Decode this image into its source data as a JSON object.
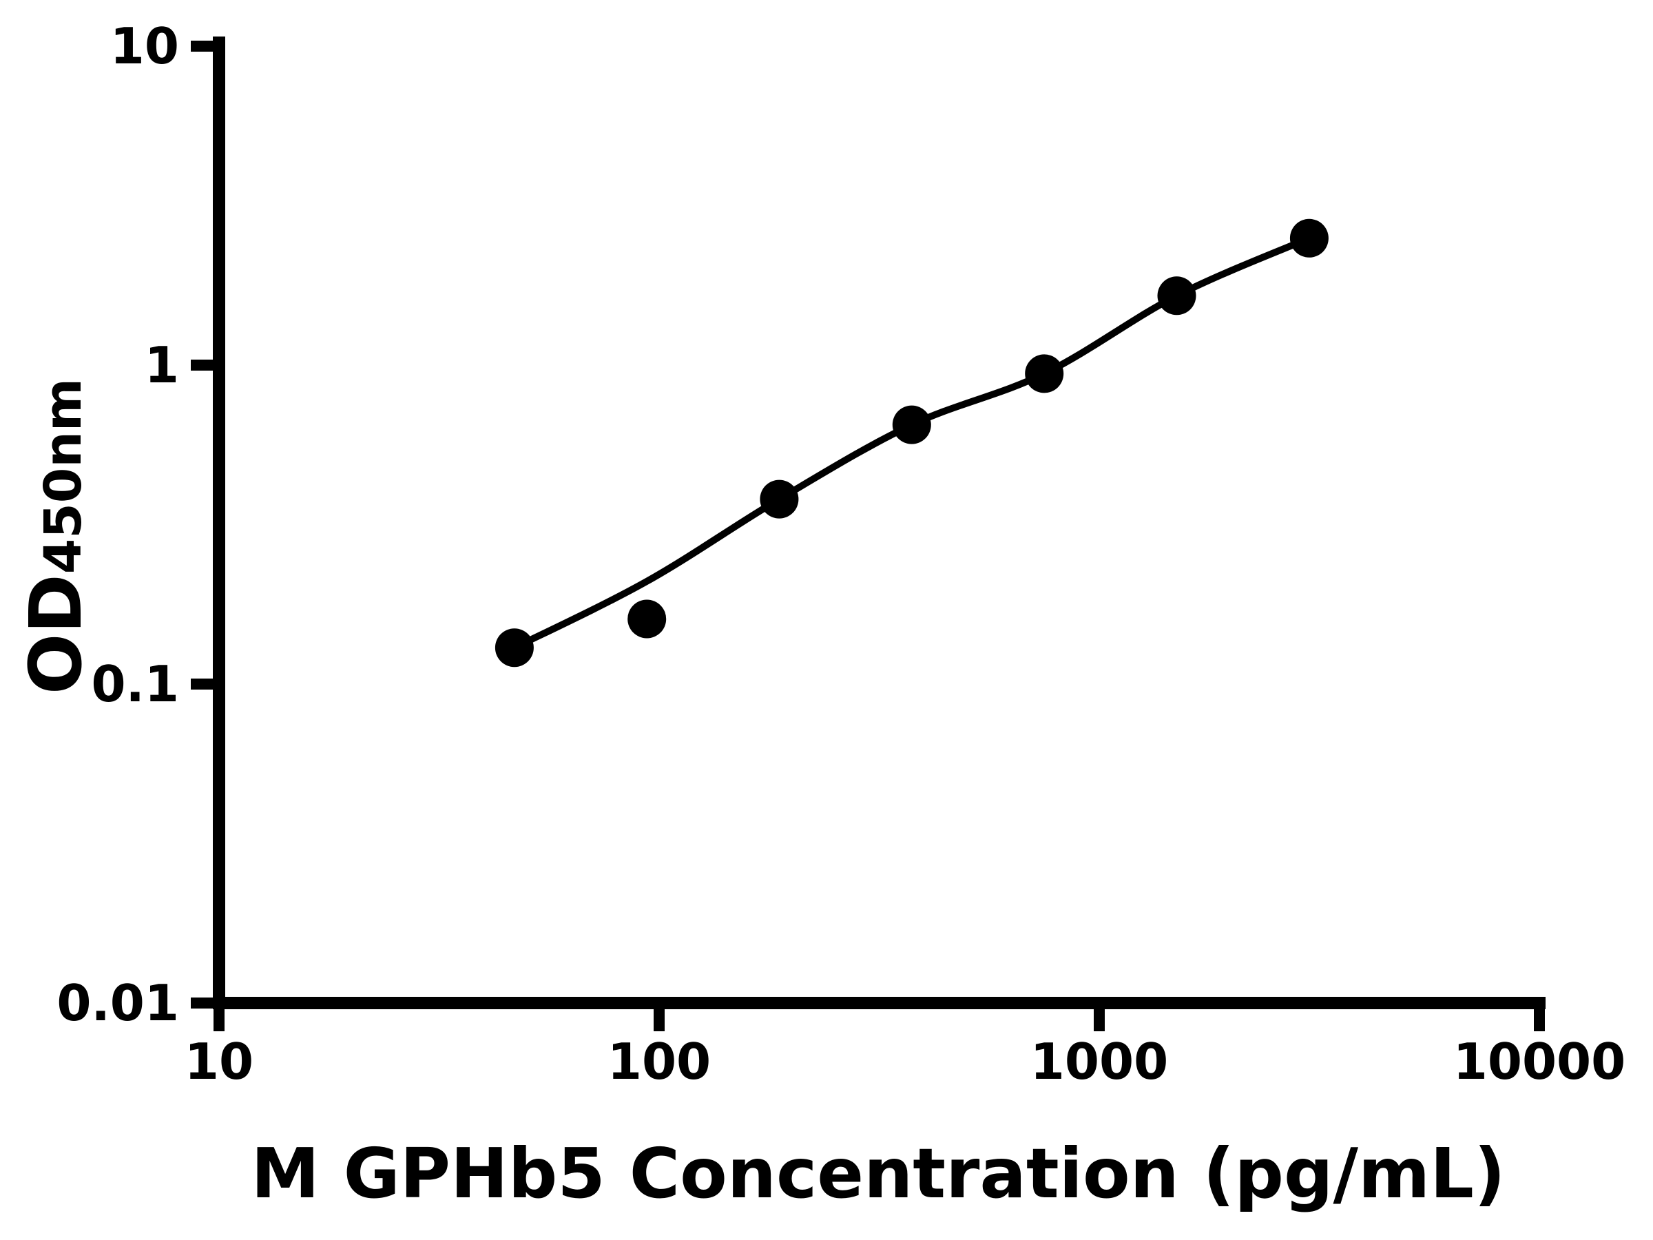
{
  "chart_data": {
    "type": "scatter",
    "title": "",
    "xlabel": "M GPHb5 Concentration (pg/mL)",
    "ylabel": "OD450nm",
    "ylabel_main": "OD",
    "ylabel_sub": "450nm",
    "x_scale": "log",
    "y_scale": "log",
    "xlim": [
      10,
      10000
    ],
    "ylim": [
      0.01,
      10
    ],
    "grid": false,
    "legend": "none",
    "x_ticks": [
      {
        "value": 10,
        "label": "10"
      },
      {
        "value": 100,
        "label": "100"
      },
      {
        "value": 1000,
        "label": "1000"
      },
      {
        "value": 10000,
        "label": "10000"
      }
    ],
    "y_ticks": [
      {
        "value": 10,
        "label": "10"
      },
      {
        "value": 1,
        "label": "1"
      },
      {
        "value": 0.1,
        "label": "0.1"
      },
      {
        "value": 0.01,
        "label": "0.01"
      }
    ],
    "series": [
      {
        "name": "standard-curve-points",
        "marker": "circle",
        "color": "#000000",
        "points": [
          {
            "x": 46.9,
            "y": 0.13
          },
          {
            "x": 93.8,
            "y": 0.16
          },
          {
            "x": 187.5,
            "y": 0.38
          },
          {
            "x": 375,
            "y": 0.65
          },
          {
            "x": 750,
            "y": 0.94
          },
          {
            "x": 1500,
            "y": 1.65
          },
          {
            "x": 3000,
            "y": 2.5
          }
        ]
      }
    ],
    "fit_line": {
      "name": "4pl-fit-line",
      "color": "#000000",
      "samples": [
        {
          "x": 46.9,
          "y": 0.13
        },
        {
          "x": 93.8,
          "y": 0.21
        },
        {
          "x": 187.5,
          "y": 0.38
        },
        {
          "x": 375,
          "y": 0.65
        },
        {
          "x": 750,
          "y": 0.94
        },
        {
          "x": 1500,
          "y": 1.65
        },
        {
          "x": 3000,
          "y": 2.5
        }
      ]
    },
    "colors": {
      "axis": "#000000",
      "marker": "#000000",
      "line": "#000000",
      "background": "#ffffff"
    }
  }
}
